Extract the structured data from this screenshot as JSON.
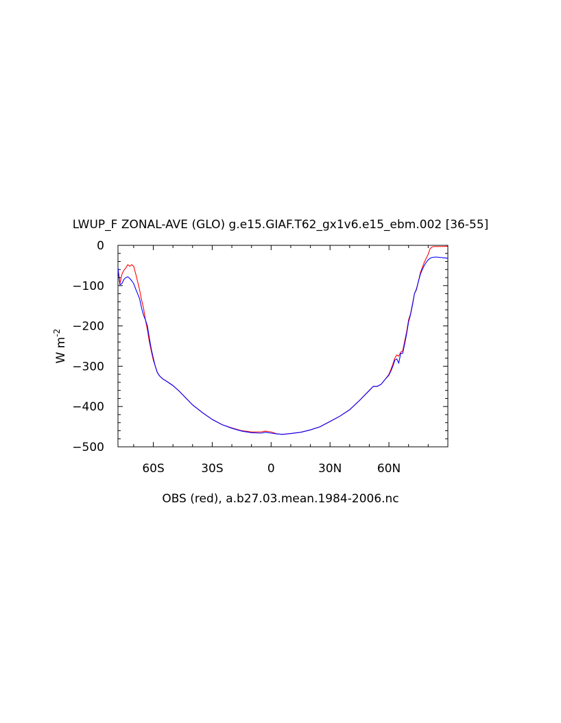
{
  "chart_data": {
    "type": "line",
    "title": "LWUP_F ZONAL-AVE (GLO) g.e15.GIAF.T62_gx1v6.e15_ebm.002 [36-55]",
    "xlabel": "OBS (red), a.b27.03.mean.1984-2006.nc",
    "ylabel": "W m",
    "ylabel_superscript": "-2",
    "xlim": [
      -78,
      90
    ],
    "ylim": [
      -500,
      0
    ],
    "x_ticks": [
      {
        "value": -60,
        "label": "60S"
      },
      {
        "value": -30,
        "label": "30S"
      },
      {
        "value": 0,
        "label": "0"
      },
      {
        "value": 30,
        "label": "30N"
      },
      {
        "value": 60,
        "label": "60N"
      }
    ],
    "y_ticks": [
      {
        "value": 0,
        "label": "0"
      },
      {
        "value": -100,
        "label": "−100"
      },
      {
        "value": -200,
        "label": "−200"
      },
      {
        "value": -300,
        "label": "−300"
      },
      {
        "value": -400,
        "label": "−400"
      },
      {
        "value": -500,
        "label": "−500"
      }
    ],
    "grid": false,
    "series": [
      {
        "color": "#ff0000",
        "points": [
          [
            -78,
            -60
          ],
          [
            -77,
            -95
          ],
          [
            -76,
            -72
          ],
          [
            -75,
            -62
          ],
          [
            -74,
            -56
          ],
          [
            -73,
            -48
          ],
          [
            -72,
            -52
          ],
          [
            -71,
            -48
          ],
          [
            -70,
            -52
          ],
          [
            -69,
            -70
          ],
          [
            -68,
            -90
          ],
          [
            -67,
            -110
          ],
          [
            -66,
            -135
          ],
          [
            -65,
            -155
          ],
          [
            -64,
            -185
          ],
          [
            -63,
            -210
          ],
          [
            -62,
            -240
          ],
          [
            -61,
            -263
          ],
          [
            -60,
            -285
          ],
          [
            -59,
            -300
          ],
          [
            -58,
            -315
          ],
          [
            -57,
            -323
          ],
          [
            -56,
            -328
          ],
          [
            -55,
            -332
          ],
          [
            -53,
            -338
          ],
          [
            -50,
            -348
          ],
          [
            -47,
            -361
          ],
          [
            -45,
            -371
          ],
          [
            -40,
            -396
          ],
          [
            -35,
            -415
          ],
          [
            -30,
            -432
          ],
          [
            -25,
            -445
          ],
          [
            -20,
            -453
          ],
          [
            -15,
            -460
          ],
          [
            -10,
            -463
          ],
          [
            -5,
            -463
          ],
          [
            -3,
            -461
          ],
          [
            0,
            -463
          ],
          [
            3,
            -468
          ],
          [
            6,
            -469
          ],
          [
            10,
            -467
          ],
          [
            15,
            -464
          ],
          [
            20,
            -458
          ],
          [
            25,
            -450
          ],
          [
            30,
            -437
          ],
          [
            35,
            -424
          ],
          [
            40,
            -408
          ],
          [
            45,
            -385
          ],
          [
            47,
            -375
          ],
          [
            50,
            -360
          ],
          [
            52,
            -350
          ],
          [
            54,
            -350
          ],
          [
            56,
            -345
          ],
          [
            58,
            -333
          ],
          [
            60,
            -320
          ],
          [
            61,
            -308
          ],
          [
            62,
            -295
          ],
          [
            63,
            -280
          ],
          [
            64,
            -272
          ],
          [
            65,
            -275
          ],
          [
            66,
            -265
          ],
          [
            67,
            -262
          ],
          [
            68,
            -238
          ],
          [
            69,
            -215
          ],
          [
            70,
            -185
          ],
          [
            71,
            -170
          ],
          [
            72,
            -145
          ],
          [
            73,
            -120
          ],
          [
            74,
            -108
          ],
          [
            75,
            -90
          ],
          [
            76,
            -68
          ],
          [
            77,
            -55
          ],
          [
            78,
            -42
          ],
          [
            79,
            -32
          ],
          [
            80,
            -22
          ],
          [
            81,
            -8
          ],
          [
            82,
            -4
          ],
          [
            83,
            -3
          ],
          [
            85,
            -3
          ],
          [
            88,
            -3
          ],
          [
            90,
            -2
          ]
        ]
      },
      {
        "color": "#0000ff",
        "points": [
          [
            -78,
            -55
          ],
          [
            -77,
            -98
          ],
          [
            -76,
            -95
          ],
          [
            -75,
            -85
          ],
          [
            -74,
            -80
          ],
          [
            -73,
            -78
          ],
          [
            -72,
            -82
          ],
          [
            -71,
            -88
          ],
          [
            -70,
            -95
          ],
          [
            -69,
            -108
          ],
          [
            -68,
            -120
          ],
          [
            -67,
            -132
          ],
          [
            -66,
            -155
          ],
          [
            -65,
            -173
          ],
          [
            -64,
            -185
          ],
          [
            -63,
            -200
          ],
          [
            -62,
            -230
          ],
          [
            -61,
            -258
          ],
          [
            -60,
            -280
          ],
          [
            -59,
            -300
          ],
          [
            -58,
            -315
          ],
          [
            -57,
            -323
          ],
          [
            -56,
            -328
          ],
          [
            -55,
            -332
          ],
          [
            -53,
            -338
          ],
          [
            -50,
            -348
          ],
          [
            -47,
            -361
          ],
          [
            -45,
            -371
          ],
          [
            -40,
            -396
          ],
          [
            -35,
            -415
          ],
          [
            -30,
            -432
          ],
          [
            -25,
            -445
          ],
          [
            -20,
            -454
          ],
          [
            -15,
            -461
          ],
          [
            -10,
            -465
          ],
          [
            -5,
            -466
          ],
          [
            -3,
            -464
          ],
          [
            0,
            -466
          ],
          [
            3,
            -468
          ],
          [
            6,
            -469
          ],
          [
            10,
            -467
          ],
          [
            15,
            -464
          ],
          [
            20,
            -458
          ],
          [
            25,
            -450
          ],
          [
            30,
            -437
          ],
          [
            35,
            -424
          ],
          [
            40,
            -408
          ],
          [
            45,
            -385
          ],
          [
            47,
            -375
          ],
          [
            50,
            -360
          ],
          [
            52,
            -350
          ],
          [
            54,
            -350
          ],
          [
            56,
            -345
          ],
          [
            58,
            -333
          ],
          [
            60,
            -322
          ],
          [
            61,
            -312
          ],
          [
            62,
            -300
          ],
          [
            63,
            -285
          ],
          [
            64,
            -282
          ],
          [
            65,
            -292
          ],
          [
            66,
            -268
          ],
          [
            67,
            -268
          ],
          [
            68,
            -245
          ],
          [
            69,
            -220
          ],
          [
            70,
            -190
          ],
          [
            71,
            -172
          ],
          [
            72,
            -148
          ],
          [
            73,
            -120
          ],
          [
            74,
            -110
          ],
          [
            75,
            -90
          ],
          [
            76,
            -72
          ],
          [
            77,
            -60
          ],
          [
            78,
            -50
          ],
          [
            79,
            -42
          ],
          [
            80,
            -36
          ],
          [
            81,
            -32
          ],
          [
            82,
            -30
          ],
          [
            84,
            -29
          ],
          [
            86,
            -30
          ],
          [
            88,
            -31
          ],
          [
            90,
            -32
          ]
        ]
      }
    ]
  }
}
